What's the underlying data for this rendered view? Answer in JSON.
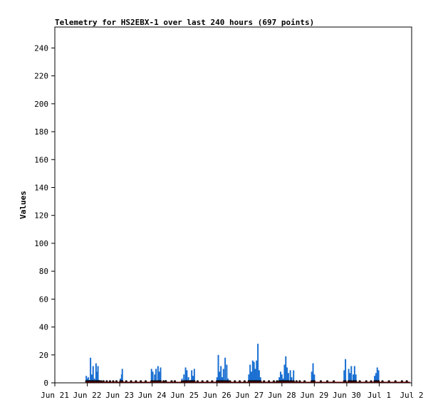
{
  "chart_data": {
    "type": "bar",
    "title": "Telemetry for HS2EBX-1 over last 240 hours (697 points)",
    "xlabel": "",
    "ylabel": "Values",
    "x_ticks": [
      "Jun 21",
      "Jun 22",
      "Jun 23",
      "Jun 24",
      "Jun 25",
      "Jun 26",
      "Jun 27",
      "Jun 28",
      "Jun 29",
      "Jun 30",
      "Jul 1",
      "Jul 2"
    ],
    "xlim": [
      0,
      11
    ],
    "ylim": [
      0,
      255
    ],
    "y_ticks": [
      0,
      20,
      40,
      60,
      80,
      100,
      120,
      140,
      160,
      180,
      200,
      220,
      240
    ],
    "grid": false,
    "colors": {
      "bars": "#1a6fd1",
      "points": "#000000",
      "baseline": "#8b0000",
      "frame": "#000000"
    },
    "series": [
      {
        "values": [
          [
            0.97,
            5
          ],
          [
            1.0,
            3
          ],
          [
            1.03,
            4
          ],
          [
            1.06,
            2
          ],
          [
            1.1,
            18
          ],
          [
            1.14,
            6
          ],
          [
            1.18,
            12
          ],
          [
            1.22,
            3
          ],
          [
            1.27,
            14
          ],
          [
            1.3,
            8
          ],
          [
            1.33,
            12
          ],
          [
            1.37,
            2
          ],
          [
            1.43,
            1
          ],
          [
            1.5,
            1
          ],
          [
            1.6,
            1
          ],
          [
            1.7,
            1
          ],
          [
            1.8,
            1
          ],
          [
            1.9,
            1
          ],
          [
            2.02,
            3
          ],
          [
            2.06,
            6
          ],
          [
            2.08,
            10
          ],
          [
            2.2,
            1
          ],
          [
            2.35,
            1
          ],
          [
            2.5,
            1
          ],
          [
            2.65,
            1
          ],
          [
            2.8,
            1
          ],
          [
            2.98,
            10
          ],
          [
            3.02,
            8
          ],
          [
            3.08,
            6
          ],
          [
            3.12,
            10
          ],
          [
            3.18,
            12
          ],
          [
            3.22,
            8
          ],
          [
            3.26,
            11
          ],
          [
            3.35,
            1
          ],
          [
            3.42,
            2
          ],
          [
            3.6,
            1
          ],
          [
            3.7,
            1
          ],
          [
            3.92,
            3
          ],
          [
            3.98,
            6
          ],
          [
            4.03,
            11
          ],
          [
            4.07,
            9
          ],
          [
            4.12,
            4
          ],
          [
            4.18,
            2
          ],
          [
            4.22,
            9
          ],
          [
            4.26,
            5
          ],
          [
            4.3,
            10
          ],
          [
            4.4,
            1
          ],
          [
            4.55,
            1
          ],
          [
            4.7,
            1
          ],
          [
            4.85,
            1
          ],
          [
            5.0,
            4
          ],
          [
            5.04,
            20
          ],
          [
            5.08,
            8
          ],
          [
            5.12,
            12
          ],
          [
            5.16,
            4
          ],
          [
            5.2,
            10
          ],
          [
            5.25,
            18
          ],
          [
            5.3,
            13
          ],
          [
            5.34,
            3
          ],
          [
            5.4,
            1
          ],
          [
            5.55,
            1
          ],
          [
            5.7,
            1
          ],
          [
            5.85,
            1
          ],
          [
            5.98,
            6
          ],
          [
            6.02,
            13
          ],
          [
            6.06,
            8
          ],
          [
            6.1,
            16
          ],
          [
            6.14,
            15
          ],
          [
            6.18,
            10
          ],
          [
            6.22,
            16
          ],
          [
            6.26,
            28
          ],
          [
            6.3,
            9
          ],
          [
            6.34,
            4
          ],
          [
            6.45,
            1
          ],
          [
            6.6,
            1
          ],
          [
            6.75,
            1
          ],
          [
            6.85,
            1
          ],
          [
            6.92,
            4
          ],
          [
            6.96,
            8
          ],
          [
            7.0,
            6
          ],
          [
            7.04,
            3
          ],
          [
            7.08,
            13
          ],
          [
            7.12,
            19
          ],
          [
            7.16,
            11
          ],
          [
            7.2,
            7
          ],
          [
            7.26,
            9
          ],
          [
            7.3,
            4
          ],
          [
            7.36,
            9
          ],
          [
            7.45,
            1
          ],
          [
            7.55,
            1
          ],
          [
            7.7,
            1
          ],
          [
            7.92,
            8
          ],
          [
            7.96,
            14
          ],
          [
            8.0,
            6
          ],
          [
            8.2,
            1
          ],
          [
            8.4,
            1
          ],
          [
            8.6,
            1
          ],
          [
            8.92,
            9
          ],
          [
            8.96,
            17
          ],
          [
            9.06,
            10
          ],
          [
            9.1,
            7
          ],
          [
            9.14,
            12
          ],
          [
            9.2,
            6
          ],
          [
            9.24,
            12
          ],
          [
            9.28,
            6
          ],
          [
            9.4,
            1
          ],
          [
            9.6,
            1
          ],
          [
            9.75,
            1
          ],
          [
            9.86,
            5
          ],
          [
            9.9,
            7
          ],
          [
            9.94,
            11
          ],
          [
            9.98,
            9
          ],
          [
            10.1,
            1
          ],
          [
            10.3,
            1
          ],
          [
            10.5,
            1
          ],
          [
            10.7,
            1
          ],
          [
            10.85,
            1
          ]
        ]
      }
    ]
  }
}
